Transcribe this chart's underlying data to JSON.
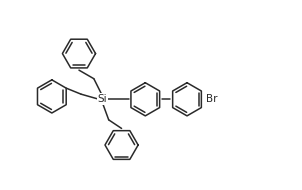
{
  "background": "#ffffff",
  "line_color": "#2a2a2a",
  "line_width": 1.1,
  "Si_label": "Si",
  "Br_label": "Br",
  "figsize": [
    3.02,
    1.9
  ],
  "dpi": 100,
  "xlim": [
    0,
    10.5
  ],
  "ylim": [
    0,
    6.6
  ],
  "r": 0.58,
  "si_x": 3.55,
  "si_y": 3.15
}
